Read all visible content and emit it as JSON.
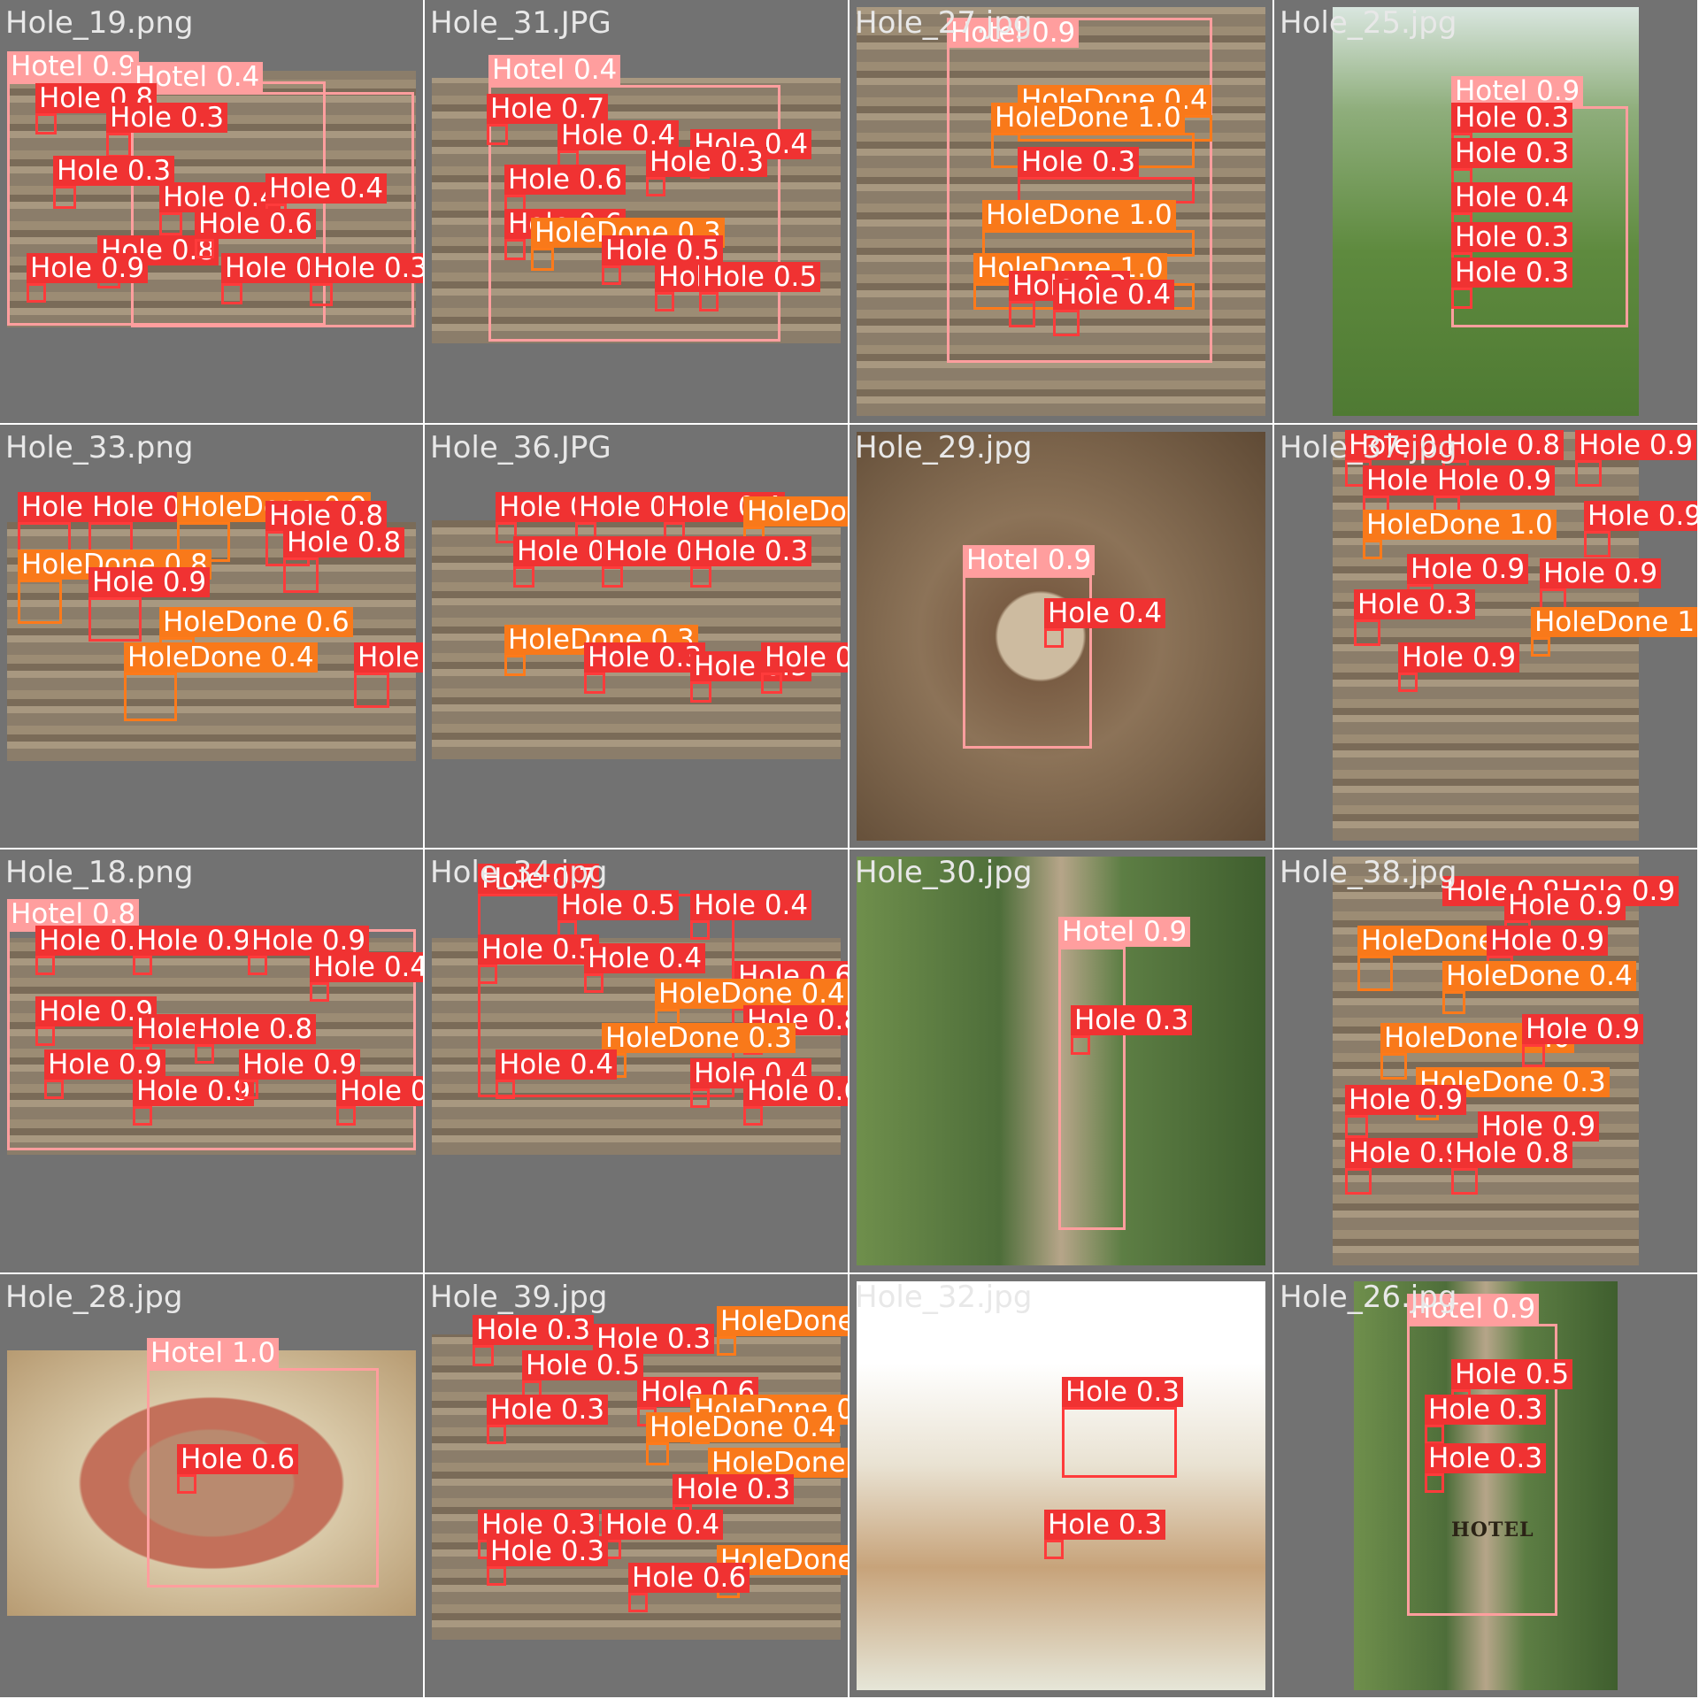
{
  "panels": [
    {
      "title": "Hole_19.png",
      "photo": "wood",
      "dets": [
        {
          "c": "hotel",
          "s": "0.9"
        },
        {
          "c": "hotel",
          "s": "0.4"
        },
        {
          "c": "hole",
          "s": "0.8"
        },
        {
          "c": "hole",
          "s": "0.3"
        },
        {
          "c": "hole",
          "s": "0.3"
        },
        {
          "c": "hole",
          "s": "0.4"
        },
        {
          "c": "hole",
          "s": "0.4"
        },
        {
          "c": "hole",
          "s": "0.8"
        },
        {
          "c": "hole",
          "s": "0.3"
        },
        {
          "c": "hole",
          "s": "0.3"
        },
        {
          "c": "hole",
          "s": "0.6"
        },
        {
          "c": "hole",
          "s": "0.9"
        }
      ]
    },
    {
      "title": "Hole_31.JPG",
      "photo": "wood",
      "dets": [
        {
          "c": "hotel",
          "s": "0.4"
        },
        {
          "c": "hole",
          "s": "0.7"
        },
        {
          "c": "hole",
          "s": "0.4"
        },
        {
          "c": "hole",
          "s": "0.6"
        },
        {
          "c": "hole",
          "s": "0.4"
        },
        {
          "c": "hole",
          "s": "0.3"
        },
        {
          "c": "hole",
          "s": "0.6"
        },
        {
          "c": "done",
          "s": "0.3"
        },
        {
          "c": "hole",
          "s": "0.5"
        },
        {
          "c": "hole",
          "s": "0.4"
        },
        {
          "c": "hole",
          "s": "0.5"
        }
      ]
    },
    {
      "title": "Hole_27.jpg",
      "photo": "wood",
      "dets": [
        {
          "c": "hotel",
          "s": "0.9"
        },
        {
          "c": "done",
          "s": "0.4"
        },
        {
          "c": "done",
          "s": "1.0"
        },
        {
          "c": "hole",
          "s": "0.3"
        },
        {
          "c": "done",
          "s": "1.0"
        },
        {
          "c": "done",
          "s": "1.0"
        },
        {
          "c": "hole",
          "s": "0.3"
        },
        {
          "c": "hole",
          "s": "0.4"
        }
      ]
    },
    {
      "title": "Hole_25.jpg",
      "photo": "grass",
      "dets": [
        {
          "c": "hotel",
          "s": "0.9"
        },
        {
          "c": "hole",
          "s": "0.3"
        },
        {
          "c": "hole",
          "s": "0.3"
        },
        {
          "c": "hole",
          "s": "0.4"
        },
        {
          "c": "hole",
          "s": "0.3"
        },
        {
          "c": "hole",
          "s": "0.3"
        }
      ]
    },
    {
      "title": "Hole_33.png",
      "photo": "wood",
      "dets": [
        {
          "c": "hole",
          "s": "0.8"
        },
        {
          "c": "hole",
          "s": "0.8"
        },
        {
          "c": "done",
          "s": "0.9"
        },
        {
          "c": "hole",
          "s": "0.8"
        },
        {
          "c": "hole",
          "s": "0.8"
        },
        {
          "c": "done",
          "s": "0.8"
        },
        {
          "c": "hole",
          "s": "0.9"
        },
        {
          "c": "done",
          "s": "0.6"
        },
        {
          "c": "hole",
          "s": "0.9"
        },
        {
          "c": "done",
          "s": "0.4"
        }
      ]
    },
    {
      "title": "Hole_36.JPG",
      "photo": "wood",
      "dets": [
        {
          "c": "hole",
          "s": "0.3"
        },
        {
          "c": "hole",
          "s": "0.4"
        },
        {
          "c": "hole",
          "s": "0.4"
        },
        {
          "c": "done",
          "s": "0.9"
        },
        {
          "c": "hole",
          "s": "0.8"
        },
        {
          "c": "hole",
          "s": "0.3"
        },
        {
          "c": "hole",
          "s": "0.3"
        },
        {
          "c": "done",
          "s": "0.3"
        },
        {
          "c": "hole",
          "s": "0.3"
        },
        {
          "c": "hole",
          "s": "0.3"
        },
        {
          "c": "hole",
          "s": "0.3"
        }
      ]
    },
    {
      "title": "Hole_29.jpg",
      "photo": "bush",
      "dets": [
        {
          "c": "hotel",
          "s": "0.9"
        },
        {
          "c": "hole",
          "s": "0.4"
        }
      ]
    },
    {
      "title": "Hole_37.jpg",
      "photo": "wood",
      "dets": [
        {
          "c": "hole",
          "s": "0.9"
        },
        {
          "c": "hole",
          "s": "0.8"
        },
        {
          "c": "hole",
          "s": "0.9"
        },
        {
          "c": "hole",
          "s": "0.9"
        },
        {
          "c": "hole",
          "s": "0.9"
        },
        {
          "c": "done",
          "s": "1.0"
        },
        {
          "c": "hole",
          "s": "0.9"
        },
        {
          "c": "hole",
          "s": "0.9"
        },
        {
          "c": "hole",
          "s": "0.9"
        },
        {
          "c": "hole",
          "s": "0.3"
        },
        {
          "c": "done",
          "s": "1.0"
        },
        {
          "c": "hole",
          "s": "0.9"
        }
      ]
    },
    {
      "title": "Hole_18.png",
      "photo": "wood",
      "dets": [
        {
          "c": "hotel",
          "s": "0.8"
        },
        {
          "c": "hole",
          "s": "0.9"
        },
        {
          "c": "hole",
          "s": "0.9"
        },
        {
          "c": "hole",
          "s": "0.9"
        },
        {
          "c": "hole",
          "s": "0.4"
        },
        {
          "c": "hole",
          "s": "0.9"
        },
        {
          "c": "hole",
          "s": "0.9"
        },
        {
          "c": "hole",
          "s": "0.8"
        },
        {
          "c": "hole",
          "s": "0.9"
        },
        {
          "c": "hole",
          "s": "0.9"
        },
        {
          "c": "hole",
          "s": "0.9"
        },
        {
          "c": "hole",
          "s": "0.9"
        }
      ]
    },
    {
      "title": "Hole_34.jpg",
      "photo": "wood",
      "dets": [
        {
          "c": "hole",
          "s": "0.7"
        },
        {
          "c": "hole",
          "s": "0.5"
        },
        {
          "c": "hole",
          "s": "0.4"
        },
        {
          "c": "hole",
          "s": "0.5"
        },
        {
          "c": "hole",
          "s": "0.4"
        },
        {
          "c": "hole",
          "s": "0.6"
        },
        {
          "c": "done",
          "s": "0.4"
        },
        {
          "c": "hole",
          "s": "0.8"
        },
        {
          "c": "done",
          "s": "0.3"
        },
        {
          "c": "hole",
          "s": "0.4"
        },
        {
          "c": "hole",
          "s": "0.4"
        },
        {
          "c": "hole",
          "s": "0.6"
        }
      ]
    },
    {
      "title": "Hole_30.jpg",
      "photo": "garden",
      "dets": [
        {
          "c": "hotel",
          "s": "0.9"
        },
        {
          "c": "hole",
          "s": "0.3"
        }
      ]
    },
    {
      "title": "Hole_38.jpg",
      "photo": "wood",
      "dets": [
        {
          "c": "hole",
          "s": "0.9"
        },
        {
          "c": "hole",
          "s": "0.9"
        },
        {
          "c": "hole",
          "s": "0.9"
        },
        {
          "c": "done",
          "s": "0.9"
        },
        {
          "c": "hole",
          "s": "0.9"
        },
        {
          "c": "done",
          "s": "0.4"
        },
        {
          "c": "done",
          "s": "1.0"
        },
        {
          "c": "hole",
          "s": "0.9"
        },
        {
          "c": "done",
          "s": "0.3"
        },
        {
          "c": "hole",
          "s": "0.9"
        },
        {
          "c": "hole",
          "s": "0.9"
        },
        {
          "c": "hole",
          "s": "0.9"
        },
        {
          "c": "hole",
          "s": "0.8"
        }
      ]
    },
    {
      "title": "Hole_28.jpg",
      "photo": "can",
      "dets": [
        {
          "c": "hotel",
          "s": "1.0"
        },
        {
          "c": "hole",
          "s": "0.6"
        }
      ]
    },
    {
      "title": "Hole_39.jpg",
      "photo": "wood",
      "dets": [
        {
          "c": "hole",
          "s": "0.3"
        },
        {
          "c": "hole",
          "s": "0.3"
        },
        {
          "c": "done",
          "s": "0.5"
        },
        {
          "c": "hole",
          "s": "0.5"
        },
        {
          "c": "hole",
          "s": "0.6"
        },
        {
          "c": "done",
          "s": "0.9"
        },
        {
          "c": "hole",
          "s": "0.3"
        },
        {
          "c": "done",
          "s": "0.4"
        },
        {
          "c": "done",
          "s": "1.0"
        },
        {
          "c": "hole",
          "s": "0.3"
        },
        {
          "c": "hole",
          "s": "0.3"
        },
        {
          "c": "hole",
          "s": "0.4"
        },
        {
          "c": "hole",
          "s": "0.3"
        },
        {
          "c": "done",
          "s": "0.9"
        },
        {
          "c": "hole",
          "s": "0.6"
        }
      ]
    },
    {
      "title": "Hole_32.jpg",
      "photo": "white",
      "dets": [
        {
          "c": "hole",
          "s": "0.3"
        },
        {
          "c": "hole",
          "s": "0.3"
        }
      ]
    },
    {
      "title": "Hole_26.jpg",
      "photo": "garden",
      "hotel_text": "HOTEL",
      "dets": [
        {
          "c": "hotel",
          "s": "0.9"
        },
        {
          "c": "hole",
          "s": "0.5"
        },
        {
          "c": "hole",
          "s": "0.3"
        },
        {
          "c": "hole",
          "s": "0.3"
        }
      ]
    }
  ],
  "class_names": {
    "hotel": "Hotel",
    "hole": "Hole",
    "done": "HoleDone"
  },
  "colors": {
    "hotel": "#ff9e9e",
    "hole": "#f03232",
    "done": "#f9791a",
    "tile": "#727272"
  }
}
